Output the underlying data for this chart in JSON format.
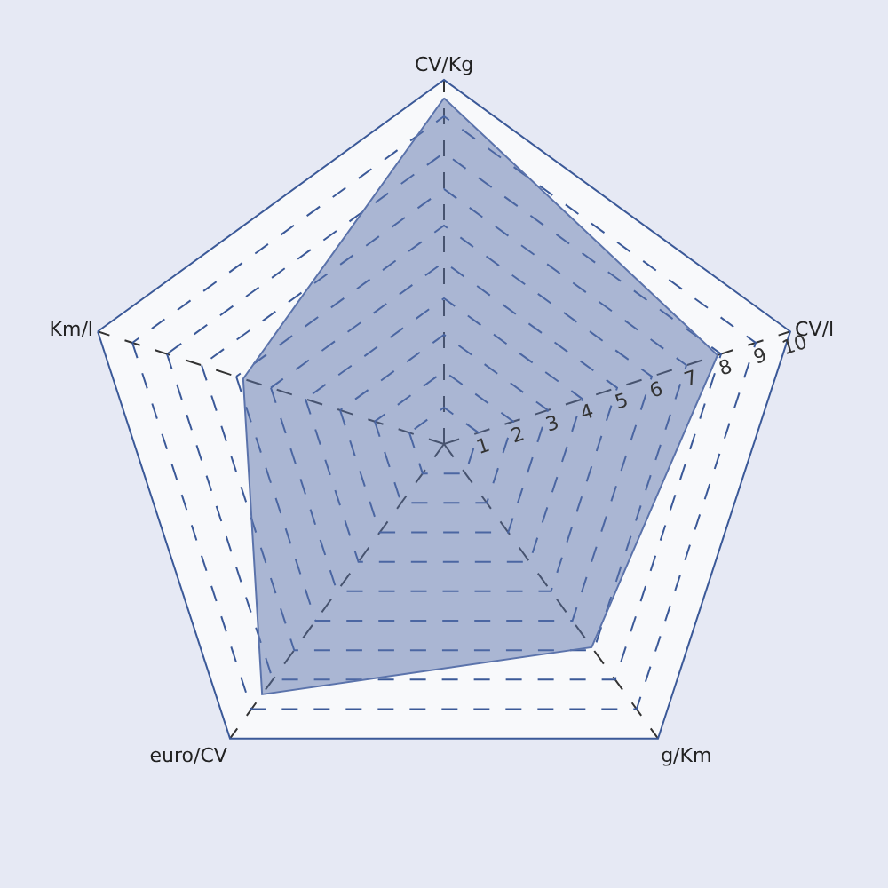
{
  "chart_data": {
    "type": "radar",
    "categories": [
      "CV/Kg",
      "CV/l",
      "g/Km",
      "euro/CV",
      "Km/l"
    ],
    "series": [
      {
        "color": "#5b73ab",
        "values": [
          9.5,
          7.9,
          6.9,
          8.5,
          5.8
        ]
      }
    ],
    "ylim": [
      0,
      10
    ],
    "yticks": [
      1,
      2,
      3,
      4,
      5,
      6,
      7,
      8,
      9,
      10
    ],
    "grid": true,
    "marker": "none",
    "line_style": "solid"
  }
}
